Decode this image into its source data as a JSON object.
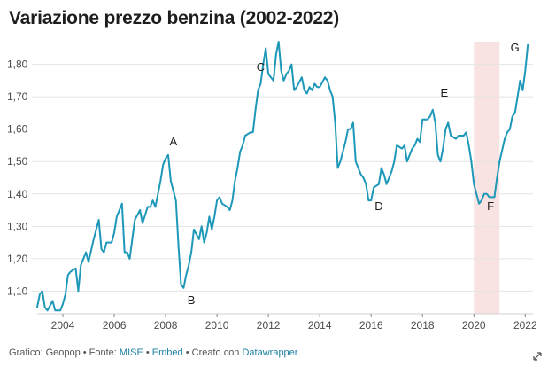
{
  "title": "Variazione prezzo benzina (2002-2022)",
  "footer": {
    "prefix": "Grafico: Geopop • Fonte: ",
    "source_link": "MISE",
    "sep1": " • ",
    "embed_link": "Embed",
    "sep2": " • Creato con ",
    "datawrapper_link": "Datawrapper"
  },
  "icons": {
    "resize": "diagonal-resize-icon"
  },
  "colors": {
    "line": "#1e98b9",
    "highlight": "#f9e3e2",
    "grid": "#e4e4e4"
  },
  "chart_data": {
    "type": "line",
    "title": "Variazione prezzo benzina (2002-2022)",
    "xlabel": "",
    "ylabel": "",
    "xlim": [
      2003.0,
      2022.3
    ],
    "ylim": [
      1.03,
      1.87
    ],
    "x_ticks": [
      2004,
      2006,
      2008,
      2010,
      2012,
      2014,
      2016,
      2018,
      2020,
      2022
    ],
    "y_ticks": [
      1.1,
      1.2,
      1.3,
      1.4,
      1.5,
      1.6,
      1.7,
      1.8
    ],
    "y_tick_labels": [
      "1,10",
      "1,20",
      "1,30",
      "1,40",
      "1,50",
      "1,60",
      "1,70",
      "1,80"
    ],
    "grid": "horizontal",
    "highlight_range": [
      2020.0,
      2021.0
    ],
    "series": [
      {
        "x": [
          2003.0,
          2003.1,
          2003.2,
          2003.3,
          2003.4,
          2003.6,
          2003.7,
          2003.9,
          2004.0,
          2004.1,
          2004.2,
          2004.3,
          2004.5,
          2004.6,
          2004.7,
          2004.9,
          2005.0,
          2005.2,
          2005.4,
          2005.5,
          2005.6,
          2005.7,
          2005.9,
          2006.0,
          2006.1,
          2006.3,
          2006.4,
          2006.5,
          2006.6,
          2006.7,
          2006.8,
          2007.0,
          2007.1,
          2007.3,
          2007.4,
          2007.5,
          2007.6,
          2007.8,
          2007.9,
          2008.0,
          2008.1,
          2008.2,
          2008.4,
          2008.5,
          2008.6,
          2008.7,
          2008.8,
          2008.9,
          2009.0,
          2009.1,
          2009.3,
          2009.4,
          2009.5,
          2009.6,
          2009.7,
          2009.8,
          2009.9,
          2010.0,
          2010.1,
          2010.2,
          2010.4,
          2010.5,
          2010.6,
          2010.7,
          2010.8,
          2010.9,
          2011.0,
          2011.1,
          2011.3,
          2011.4,
          2011.5,
          2011.6,
          2011.7,
          2011.8,
          2011.9,
          2012.0,
          2012.2,
          2012.3,
          2012.4,
          2012.5,
          2012.6,
          2012.7,
          2012.8,
          2012.9,
          2013.0,
          2013.1,
          2013.3,
          2013.4,
          2013.5,
          2013.6,
          2013.7,
          2013.8,
          2013.9,
          2014.0,
          2014.2,
          2014.3,
          2014.4,
          2014.5,
          2014.6,
          2014.7,
          2014.8,
          2014.9,
          2015.0,
          2015.1,
          2015.2,
          2015.3,
          2015.4,
          2015.5,
          2015.6,
          2015.7,
          2015.8,
          2015.9,
          2016.0,
          2016.1,
          2016.3,
          2016.4,
          2016.5,
          2016.6,
          2016.7,
          2016.8,
          2016.9,
          2017.0,
          2017.2,
          2017.3,
          2017.4,
          2017.5,
          2017.6,
          2017.7,
          2017.8,
          2017.9,
          2018.0,
          2018.2,
          2018.3,
          2018.4,
          2018.5,
          2018.6,
          2018.7,
          2018.8,
          2018.9,
          2019.0,
          2019.1,
          2019.3,
          2019.4,
          2019.5,
          2019.6,
          2019.7,
          2019.8,
          2019.9,
          2020.0,
          2020.2,
          2020.3,
          2020.4,
          2020.5,
          2020.6,
          2020.7,
          2020.8,
          2020.9,
          2021.0,
          2021.2,
          2021.3,
          2021.4,
          2021.5,
          2021.6,
          2021.7,
          2021.8,
          2021.9,
          2022.0,
          2022.1
        ],
        "values": [
          1.05,
          1.09,
          1.1,
          1.05,
          1.04,
          1.07,
          1.04,
          1.04,
          1.06,
          1.09,
          1.15,
          1.16,
          1.17,
          1.1,
          1.18,
          1.22,
          1.19,
          1.26,
          1.32,
          1.23,
          1.22,
          1.25,
          1.25,
          1.28,
          1.33,
          1.37,
          1.22,
          1.22,
          1.2,
          1.26,
          1.32,
          1.35,
          1.31,
          1.36,
          1.36,
          1.38,
          1.36,
          1.44,
          1.49,
          1.51,
          1.52,
          1.44,
          1.38,
          1.24,
          1.12,
          1.11,
          1.15,
          1.18,
          1.22,
          1.29,
          1.26,
          1.3,
          1.25,
          1.28,
          1.33,
          1.29,
          1.33,
          1.38,
          1.39,
          1.37,
          1.36,
          1.35,
          1.38,
          1.44,
          1.48,
          1.53,
          1.55,
          1.58,
          1.59,
          1.59,
          1.66,
          1.72,
          1.74,
          1.8,
          1.85,
          1.77,
          1.75,
          1.83,
          1.87,
          1.78,
          1.75,
          1.77,
          1.78,
          1.8,
          1.72,
          1.73,
          1.76,
          1.72,
          1.71,
          1.73,
          1.72,
          1.74,
          1.73,
          1.73,
          1.76,
          1.75,
          1.72,
          1.7,
          1.62,
          1.48,
          1.5,
          1.53,
          1.56,
          1.6,
          1.6,
          1.62,
          1.5,
          1.48,
          1.46,
          1.45,
          1.43,
          1.38,
          1.38,
          1.42,
          1.43,
          1.48,
          1.46,
          1.43,
          1.45,
          1.47,
          1.5,
          1.55,
          1.54,
          1.55,
          1.5,
          1.52,
          1.54,
          1.55,
          1.57,
          1.56,
          1.63,
          1.63,
          1.64,
          1.66,
          1.62,
          1.52,
          1.5,
          1.54,
          1.6,
          1.62,
          1.58,
          1.57,
          1.58,
          1.58,
          1.58,
          1.59,
          1.55,
          1.5,
          1.43,
          1.37,
          1.38,
          1.4,
          1.4,
          1.39,
          1.39,
          1.39,
          1.45,
          1.5,
          1.57,
          1.59,
          1.6,
          1.64,
          1.65,
          1.7,
          1.75,
          1.72,
          1.78,
          1.86
        ]
      }
    ],
    "annotations": [
      {
        "label": "A",
        "x": 2008.3,
        "y": 1.55
      },
      {
        "label": "B",
        "x": 2009.0,
        "y": 1.06
      },
      {
        "label": "C",
        "x": 2011.7,
        "y": 1.78
      },
      {
        "label": "D",
        "x": 2016.3,
        "y": 1.35
      },
      {
        "label": "E",
        "x": 2018.85,
        "y": 1.7
      },
      {
        "label": "F",
        "x": 2020.65,
        "y": 1.35
      },
      {
        "label": "G",
        "x": 2021.6,
        "y": 1.84
      }
    ]
  }
}
